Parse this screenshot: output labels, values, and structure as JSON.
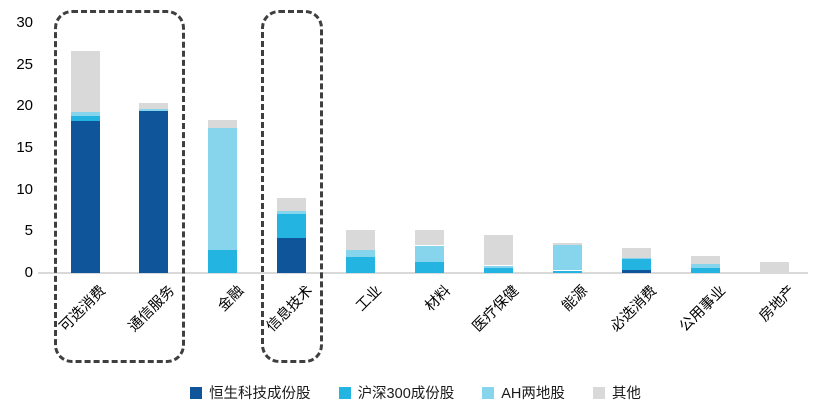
{
  "chart_data": {
    "type": "bar",
    "stacked": true,
    "title": "",
    "xlabel": "",
    "ylabel": "",
    "ylim": [
      0,
      30
    ],
    "y_ticks": [
      0,
      5,
      10,
      15,
      20,
      25,
      30
    ],
    "grid": false,
    "legend_position": "bottom",
    "categories": [
      "可选消费",
      "通信服务",
      "金融",
      "信息技术",
      "工业",
      "材料",
      "医疗保健",
      "能源",
      "必选消费",
      "公用事业",
      "房地产"
    ],
    "series": [
      {
        "name": "恒生科技成份股",
        "color": "#0e5599",
        "values": [
          18.2,
          19.4,
          0,
          4.2,
          0,
          0,
          0,
          0,
          0.4,
          0,
          0
        ]
      },
      {
        "name": "沪深300成份股",
        "color": "#24b4e1",
        "values": [
          0.6,
          0,
          2.8,
          2.9,
          1.9,
          1.3,
          0.6,
          0.3,
          1.3,
          0.6,
          0
        ]
      },
      {
        "name": "AH两地股",
        "color": "#86d5ec",
        "values": [
          0.5,
          0.3,
          14.6,
          0.3,
          0.9,
          2.0,
          0.3,
          3.1,
          0.1,
          0.5,
          0
        ]
      },
      {
        "name": "其他",
        "color": "#d9d9d9",
        "values": [
          7.3,
          0.7,
          1.0,
          1.6,
          2.4,
          1.9,
          3.7,
          0.2,
          1.2,
          0.9,
          1.3
        ]
      }
    ],
    "highlight_boxes": [
      {
        "first_category": "可选消费",
        "last_category": "通信服务"
      },
      {
        "first_category": "信息技术",
        "last_category": "信息技术"
      }
    ],
    "colors": {
      "axis_line": "#d9d9d9",
      "highlight_box_border": "#3f3f3f",
      "tick_text": "#000000"
    }
  }
}
